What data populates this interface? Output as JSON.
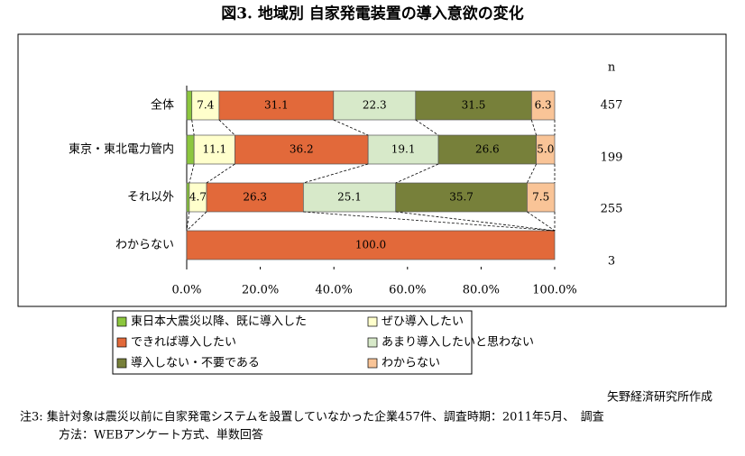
{
  "chart_data": {
    "type": "stacked-bar-horizontal",
    "title": "図3. 地域別 自家発電装置の導入意欲の変化",
    "categories": [
      "全体",
      "東京・東北電力管内",
      "それ以外",
      "わからない"
    ],
    "series": [
      {
        "name": "東日本大震災以降、既に導入した",
        "color": "#8cc63e",
        "values": [
          1.4,
          2.0,
          0.7,
          0
        ]
      },
      {
        "name": "ぜひ導入したい",
        "color": "#ffffcc",
        "values": [
          7.4,
          11.1,
          4.7,
          0
        ],
        "value_labels": [
          "7.4",
          "11.1",
          "4.7",
          null
        ]
      },
      {
        "name": "できれば導入したい",
        "color": "#e2693a",
        "values": [
          31.1,
          36.2,
          26.3,
          100
        ],
        "value_labels": [
          "31.1",
          "36.2",
          "26.3",
          "100.0"
        ]
      },
      {
        "name": "あまり導入したいと思わない",
        "color": "#d7e9c9",
        "values": [
          22.3,
          19.1,
          25.1,
          0
        ],
        "value_labels": [
          "22.3",
          "19.1",
          "25.1",
          null
        ]
      },
      {
        "name": "導入しない・不要である",
        "color": "#77803a",
        "values": [
          31.5,
          26.6,
          35.7,
          0
        ],
        "value_labels": [
          "31.5",
          "26.6",
          "35.7",
          null
        ]
      },
      {
        "name": "わからない",
        "color": "#f9c497",
        "values": [
          6.3,
          5.0,
          7.5,
          0
        ],
        "value_labels": [
          "6.3",
          "5.0",
          "7.5",
          null
        ]
      }
    ],
    "xlim": [
      0,
      100
    ],
    "xticks": [
      {
        "value": 0,
        "label": "0.0%"
      },
      {
        "value": 20,
        "label": "20.0%"
      },
      {
        "value": 40,
        "label": "40.0%"
      },
      {
        "value": 60,
        "label": "60.0%"
      },
      {
        "value": 80,
        "label": "80.0%"
      },
      {
        "value": 100,
        "label": "100.0%"
      }
    ],
    "n_header": "n",
    "n_values": [
      457,
      199,
      255,
      3
    ],
    "source": "矢野経済研究所作成",
    "note": [
      "注3: 集計対象は震災以前に自家発電システムを設置していなかった企業457件、調査時期：2011年5月、　調査",
      "方法：WEBアンケート方式、単数回答"
    ]
  }
}
